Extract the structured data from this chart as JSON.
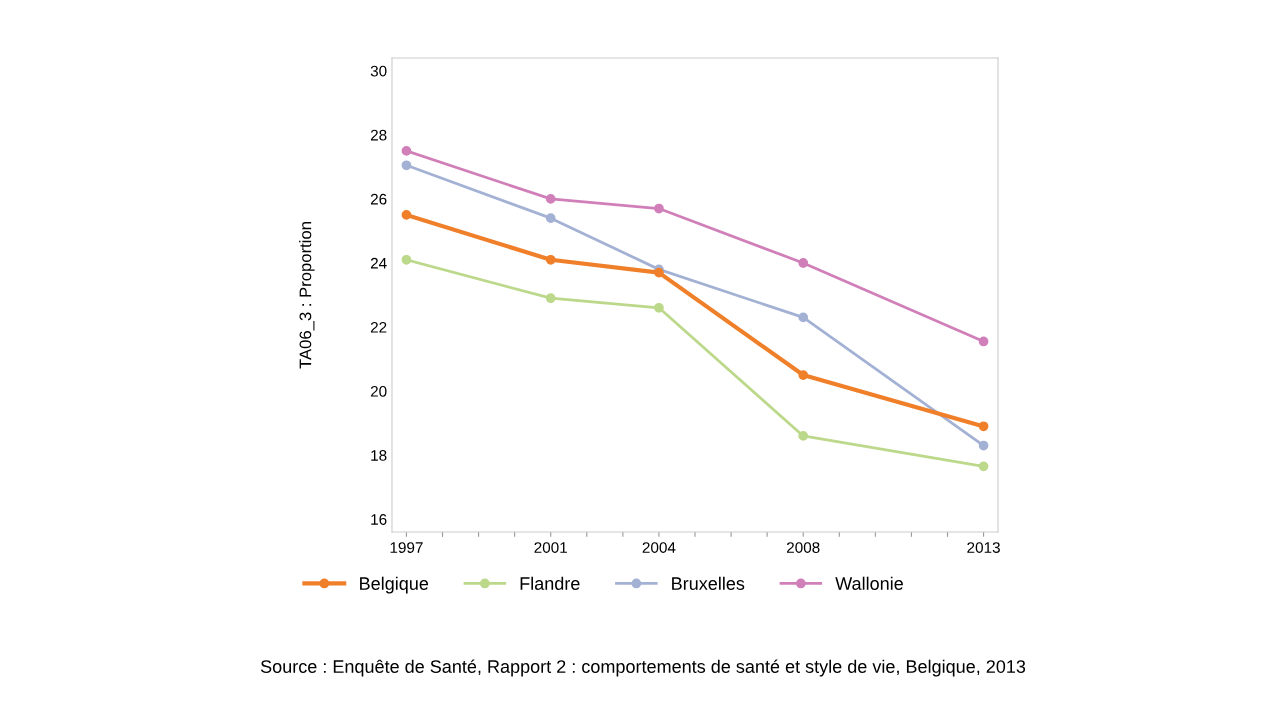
{
  "chart_data": {
    "type": "line",
    "ylabel": "TA06_3 : Proportion",
    "x": [
      1997,
      2001,
      2004,
      2008,
      2013
    ],
    "series": [
      {
        "name": "Belgique",
        "color": "#f07f2a",
        "values": [
          25.5,
          24.1,
          23.7,
          20.5,
          18.9
        ]
      },
      {
        "name": "Flandre",
        "color": "#bcd88a",
        "values": [
          24.1,
          22.9,
          22.6,
          18.6,
          17.65
        ]
      },
      {
        "name": "Bruxelles",
        "color": "#a3b1d4",
        "values": [
          27.05,
          25.4,
          23.8,
          22.3,
          18.3
        ]
      },
      {
        "name": "Wallonie",
        "color": "#d07fb9",
        "values": [
          27.5,
          26.0,
          25.7,
          24.0,
          21.55
        ]
      }
    ],
    "xlim": [
      1996.6,
      2013.4
    ],
    "ylim": [
      15.6,
      30.4
    ],
    "xticks": [
      1997,
      {
        "value": 1998,
        "label": null
      },
      {
        "value": 1999,
        "label": null
      },
      {
        "value": 2000,
        "label": null
      },
      2001,
      {
        "value": 2002,
        "label": null
      },
      {
        "value": 2003,
        "label": null
      },
      2004,
      {
        "value": 2005,
        "label": null
      },
      {
        "value": 2006,
        "label": null
      },
      {
        "value": 2007,
        "label": null
      },
      2008,
      {
        "value": 2009,
        "label": null
      },
      {
        "value": 2010,
        "label": null
      },
      {
        "value": 2011,
        "label": null
      },
      {
        "value": 2012,
        "label": null
      },
      2013
    ],
    "yticks": [
      16,
      18,
      20,
      22,
      24,
      26,
      28,
      30
    ],
    "grid": false,
    "legend": "bottom",
    "marker": "circle",
    "line_style": "solid",
    "annotations": [
      "Source : Enquête de Santé, Rapport 2 : comportements de santé et style de vie, Belgique, 2013"
    ]
  }
}
